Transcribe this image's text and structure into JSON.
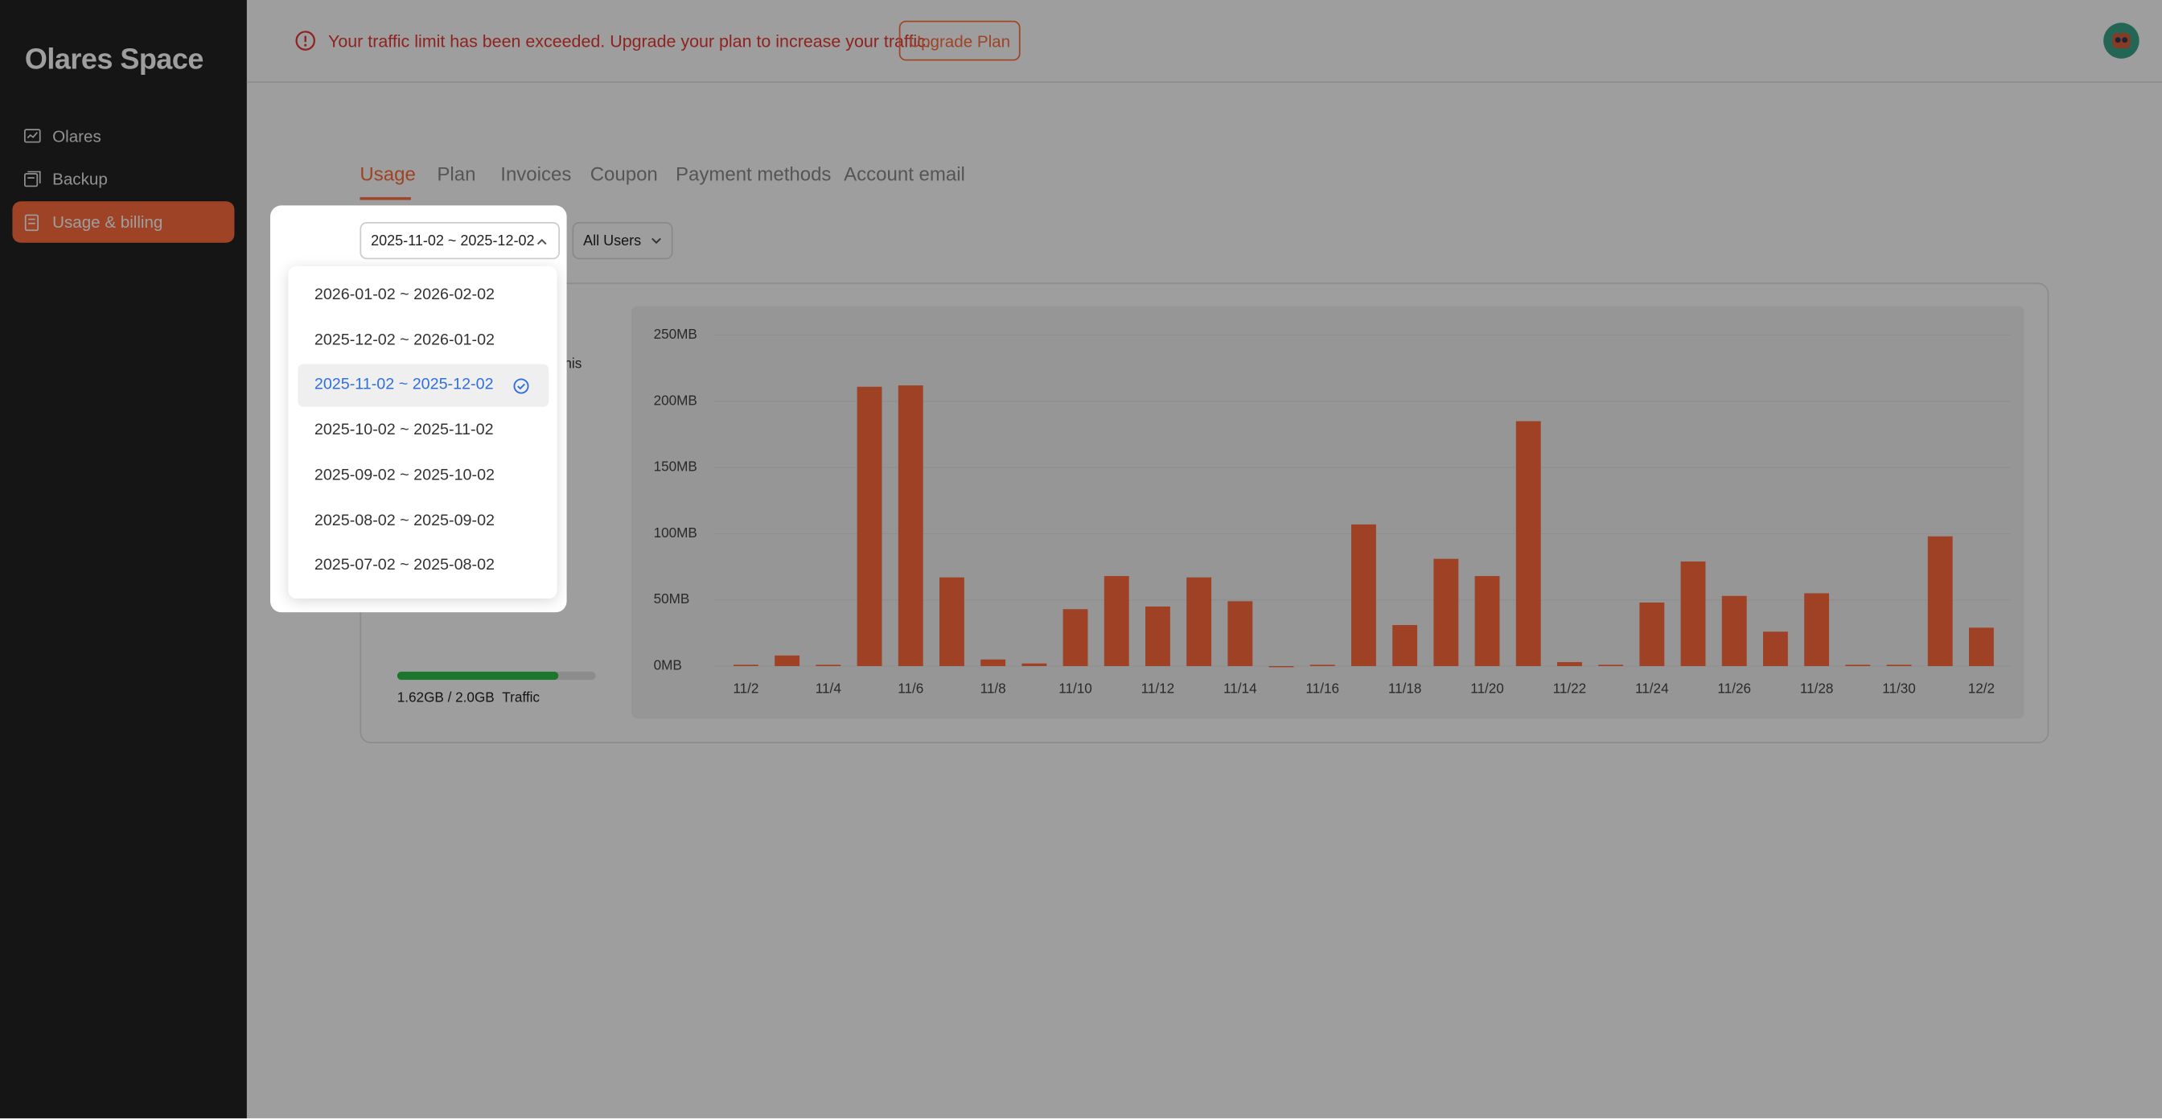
{
  "sidebar": {
    "brand": "Olares Space",
    "items": [
      "Olares",
      "Backup",
      "Usage & billing"
    ]
  },
  "banner": {
    "message": "Your traffic limit has been exceeded. Upgrade your plan to increase your traffic.",
    "button": "Upgrade Plan"
  },
  "tabs": [
    "Usage",
    "Plan",
    "Invoices",
    "Coupon",
    "Payment methods",
    "Account email"
  ],
  "filters": {
    "period": "2025-11-02 ~ 2025-12-02",
    "users": "All Users"
  },
  "period_menu": {
    "options": [
      "2026-01-02 ~ 2026-02-02",
      "2025-12-02 ~ 2026-01-02",
      "2025-11-02 ~ 2025-12-02",
      "2025-10-02 ~ 2025-11-02",
      "2025-09-02 ~ 2025-10-02",
      "2025-08-02 ~ 2025-09-02",
      "2025-07-02 ~ 2025-08-02"
    ]
  },
  "usage_card": {
    "note_fragment": "d this",
    "traffic": {
      "used": 1.62,
      "total": 2.0,
      "amount": "1.62GB / 2.0GB",
      "label": "Traffic"
    }
  },
  "chart_data": {
    "type": "bar",
    "color": "#ff6a3c",
    "grid": true,
    "categories": [
      "11/2",
      null,
      "11/4",
      null,
      "11/6",
      null,
      "11/8",
      null,
      "11/10",
      null,
      "11/12",
      null,
      "11/14",
      null,
      "11/16",
      null,
      "11/18",
      null,
      "11/20",
      null,
      "11/22",
      null,
      "11/24",
      null,
      "11/26",
      null,
      "11/28",
      null,
      "11/30",
      null,
      "12/2"
    ],
    "values": [
      1,
      8,
      1,
      211,
      212,
      67,
      5,
      2,
      43,
      68,
      45,
      67,
      49,
      0,
      1,
      107,
      31,
      81,
      68,
      185,
      3,
      1,
      48,
      79,
      53,
      26,
      55,
      1,
      1,
      98,
      29
    ],
    "ylim": [
      0,
      250
    ],
    "yticks": [
      {
        "value": 0,
        "label": "0MB"
      },
      {
        "value": 50,
        "label": "50MB"
      },
      {
        "value": 100,
        "label": "100MB"
      },
      {
        "value": 150,
        "label": "150MB"
      },
      {
        "value": 200,
        "label": "200MB"
      },
      {
        "value": 250,
        "label": "250MB"
      }
    ]
  }
}
